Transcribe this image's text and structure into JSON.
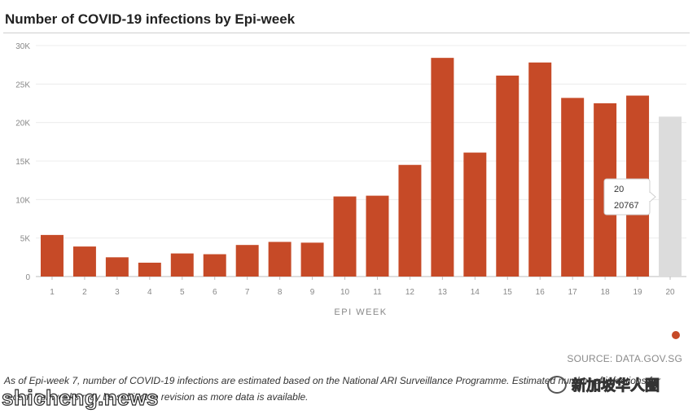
{
  "title": "Number of COVID-19 infections by Epi-week",
  "source": "SOURCE: DATA.GOV.SG",
  "note": "As of Epi-week 7, number of COVID-19 infections are estimated based on the National ARI Surveillance Programme. Estimated number of infections for recent Epi-weeks may be subject to revision as more data is available.",
  "watermark_left": "shicheng.news",
  "watermark_right": "新加坡华人圈",
  "colors": {
    "bar": "#c64a27",
    "highlight": "#dcdcdc",
    "grid": "#ececec",
    "axis_text": "#888888"
  },
  "chart_data": {
    "type": "bar",
    "categories": [
      "1",
      "2",
      "3",
      "4",
      "5",
      "6",
      "7",
      "8",
      "9",
      "10",
      "11",
      "12",
      "13",
      "14",
      "15",
      "16",
      "17",
      "18",
      "19",
      "20"
    ],
    "values": [
      5400,
      3900,
      2500,
      1800,
      3000,
      2900,
      4100,
      4500,
      4400,
      10400,
      10500,
      14500,
      28400,
      16100,
      26100,
      27800,
      23200,
      22500,
      23500,
      20767
    ],
    "xlabel": "EPI WEEK",
    "ylabel": "",
    "ylim": [
      0,
      30000
    ],
    "yticks": [
      0,
      5000,
      10000,
      15000,
      20000,
      25000,
      30000
    ],
    "ytick_labels": [
      "0",
      "5K",
      "10K",
      "15K",
      "20K",
      "25K",
      "30K"
    ],
    "grid": true,
    "highlighted_index": 19,
    "tooltip": {
      "label": "20",
      "value": "20767"
    }
  }
}
